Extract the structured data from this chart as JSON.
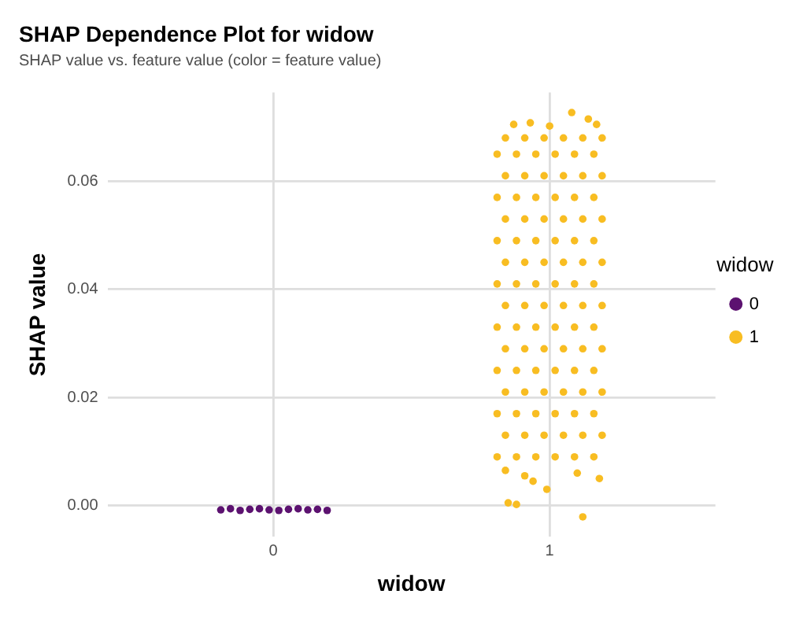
{
  "chart_data": {
    "type": "scatter",
    "title": "SHAP Dependence Plot for widow",
    "subtitle": "SHAP value vs. feature value (color = feature value)",
    "xlabel": "widow",
    "ylabel": "SHAP value",
    "legend_title": "widow",
    "legend": "right",
    "grid": true,
    "marker": "circle",
    "xlim": [
      -0.6,
      1.6
    ],
    "xticks": [
      0,
      1
    ],
    "ylim": [
      -0.0058,
      0.0764
    ],
    "yticks": [
      {
        "value": 0,
        "label": "0.00"
      },
      {
        "value": 0.02,
        "label": "0.02"
      },
      {
        "value": 0.04,
        "label": "0.04"
      },
      {
        "value": 0.06,
        "label": "0.06"
      }
    ],
    "series": [
      {
        "name": "0",
        "color": "#5c1270",
        "x": [
          -0.19,
          -0.155,
          -0.12,
          -0.085,
          -0.05,
          -0.015,
          0.02,
          0.055,
          0.09,
          0.125,
          0.16,
          0.195
        ],
        "values": [
          -0.0008,
          -0.0006,
          -0.0009,
          -0.0007,
          -0.0006,
          -0.0008,
          -0.0009,
          -0.0007,
          -0.0006,
          -0.0008,
          -0.0007,
          -0.0009
        ]
      },
      {
        "name": "1",
        "color": "#f8bd22",
        "x": [
          0.81,
          0.88,
          0.95,
          1.02,
          1.09,
          1.16,
          0.84,
          0.91,
          0.98,
          1.05,
          1.12,
          1.19,
          0.81,
          0.88,
          0.95,
          1.02,
          1.09,
          1.16,
          0.84,
          0.91,
          0.98,
          1.05,
          1.12,
          1.19,
          0.81,
          0.88,
          0.95,
          1.02,
          1.09,
          1.16,
          0.84,
          0.91,
          0.98,
          1.05,
          1.12,
          1.19,
          0.81,
          0.88,
          0.95,
          1.02,
          1.09,
          1.16,
          0.84,
          0.91,
          0.98,
          1.05,
          1.12,
          1.19,
          0.81,
          0.88,
          0.95,
          1.02,
          1.09,
          1.16,
          0.84,
          0.91,
          0.98,
          1.05,
          1.12,
          1.19,
          0.81,
          0.88,
          0.95,
          1.02,
          1.09,
          1.16,
          0.84,
          0.91,
          0.98,
          1.05,
          1.12,
          1.19,
          0.81,
          0.88,
          0.95,
          1.02,
          1.09,
          1.16,
          0.84,
          0.91,
          0.98,
          1.05,
          1.12,
          1.19,
          0.81,
          0.88,
          0.95,
          1.02,
          1.09,
          1.16,
          0.84,
          0.91,
          0.98,
          1.05,
          1.12,
          1.19,
          0.84,
          0.91,
          0.94,
          0.99,
          1.1,
          1.18,
          0.85,
          0.88,
          1.12,
          1.08,
          1.14,
          0.87,
          0.93,
          1.17,
          1.0
        ],
        "values": [
          0.009,
          0.009,
          0.009,
          0.009,
          0.009,
          0.009,
          0.013,
          0.013,
          0.013,
          0.013,
          0.013,
          0.013,
          0.017,
          0.017,
          0.017,
          0.017,
          0.017,
          0.017,
          0.021,
          0.021,
          0.021,
          0.021,
          0.021,
          0.021,
          0.025,
          0.025,
          0.025,
          0.025,
          0.025,
          0.025,
          0.029,
          0.029,
          0.029,
          0.029,
          0.029,
          0.029,
          0.033,
          0.033,
          0.033,
          0.033,
          0.033,
          0.033,
          0.037,
          0.037,
          0.037,
          0.037,
          0.037,
          0.037,
          0.041,
          0.041,
          0.041,
          0.041,
          0.041,
          0.041,
          0.045,
          0.045,
          0.045,
          0.045,
          0.045,
          0.045,
          0.049,
          0.049,
          0.049,
          0.049,
          0.049,
          0.049,
          0.053,
          0.053,
          0.053,
          0.053,
          0.053,
          0.053,
          0.057,
          0.057,
          0.057,
          0.057,
          0.057,
          0.057,
          0.061,
          0.061,
          0.061,
          0.061,
          0.061,
          0.061,
          0.065,
          0.065,
          0.065,
          0.065,
          0.065,
          0.065,
          0.068,
          0.068,
          0.068,
          0.068,
          0.068,
          0.068,
          0.0065,
          0.0055,
          0.0045,
          0.003,
          0.006,
          0.005,
          0.0005,
          0.0002,
          -0.0021,
          0.0727,
          0.0715,
          0.0705,
          0.0708,
          0.0705,
          0.0702
        ]
      }
    ]
  }
}
